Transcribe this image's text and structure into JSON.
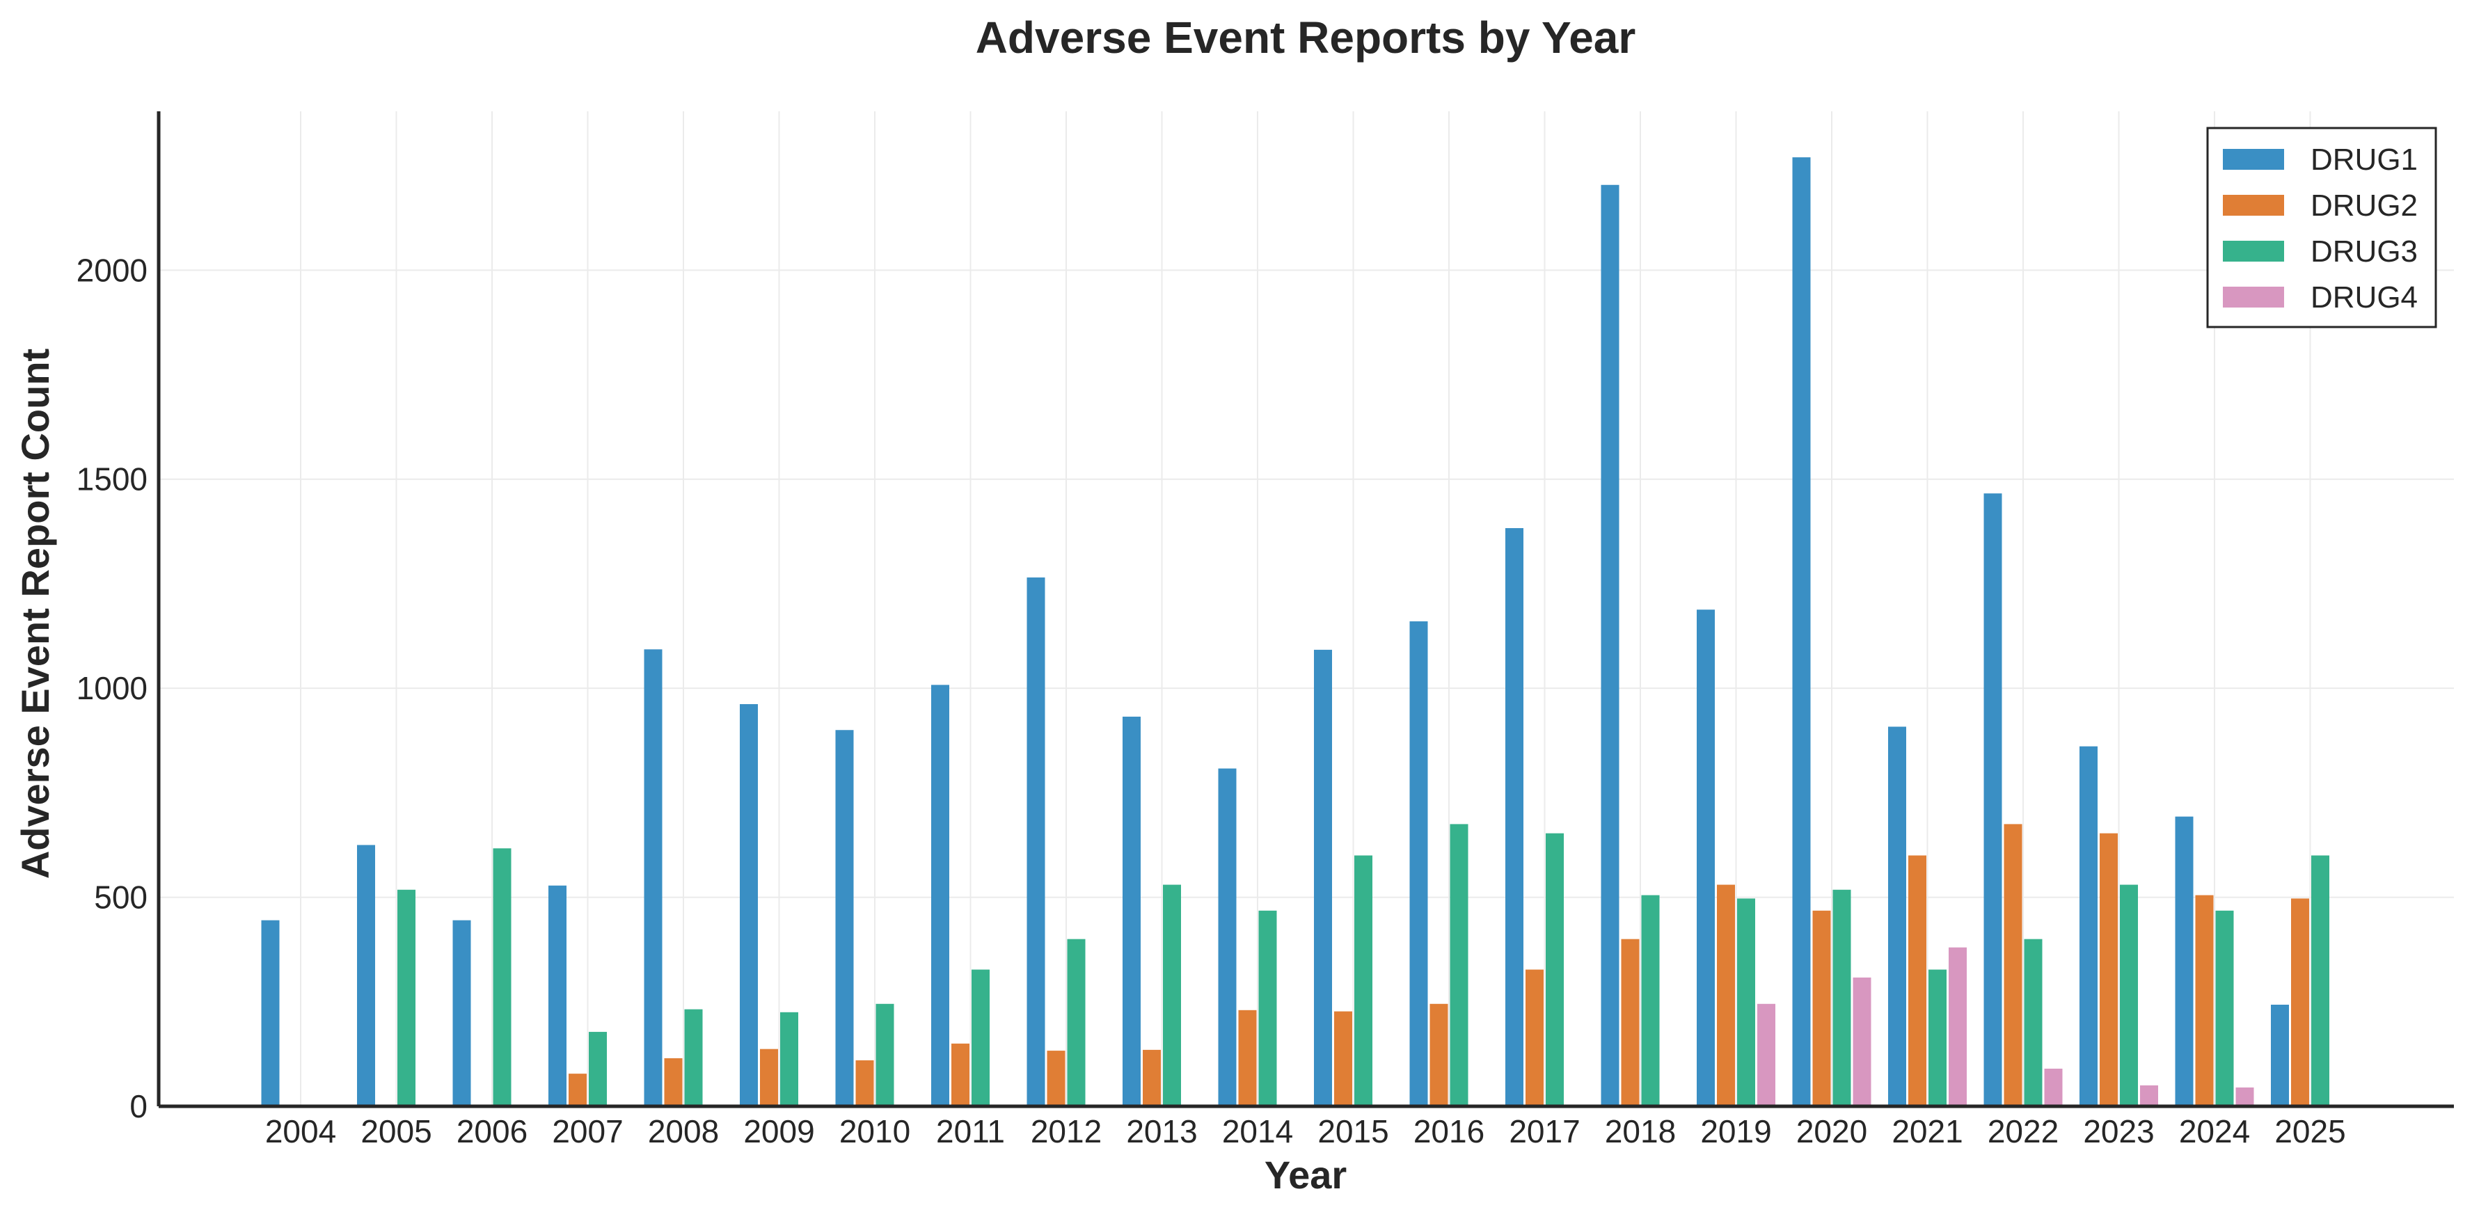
{
  "chart_data": {
    "type": "bar",
    "title": "Adverse Event Reports by Year",
    "xlabel": "Year",
    "ylabel": "Adverse Event Report Count",
    "categories": [
      "2004",
      "2005",
      "2006",
      "2007",
      "2008",
      "2009",
      "2010",
      "2011",
      "2012",
      "2013",
      "2014",
      "2015",
      "2016",
      "2017",
      "2018",
      "2019",
      "2020",
      "2021",
      "2022",
      "2023",
      "2024",
      "2025"
    ],
    "ylim": [
      0,
      2380
    ],
    "yticks": [
      0,
      500,
      1000,
      1500,
      2000
    ],
    "grid": true,
    "legend_position": "top-right",
    "series": [
      {
        "name": "DRUG1",
        "color": "#3a8fc4",
        "values": [
          445,
          625,
          445,
          528,
          1093,
          962,
          900,
          1008,
          1265,
          932,
          808,
          1092,
          1160,
          1383,
          2204,
          1188,
          2270,
          908,
          1466,
          861,
          693,
          243
        ]
      },
      {
        "name": "DRUG2",
        "color": "#e07e35",
        "values": [
          null,
          null,
          null,
          78,
          115,
          137,
          110,
          150,
          133,
          135,
          230,
          227,
          245,
          327,
          400,
          530,
          468,
          600,
          675,
          653,
          505,
          497
        ]
      },
      {
        "name": "DRUG3",
        "color": "#36b28c",
        "values": [
          null,
          518,
          617,
          178,
          232,
          225,
          245,
          327,
          400,
          530,
          468,
          600,
          675,
          653,
          505,
          497,
          518,
          327,
          400,
          530,
          468,
          600
        ]
      },
      {
        "name": "DRUG4",
        "color": "#d897c0",
        "values": [
          null,
          null,
          null,
          null,
          null,
          null,
          null,
          null,
          null,
          null,
          null,
          null,
          null,
          null,
          null,
          245,
          308,
          380,
          90,
          50,
          45,
          null
        ]
      }
    ]
  }
}
